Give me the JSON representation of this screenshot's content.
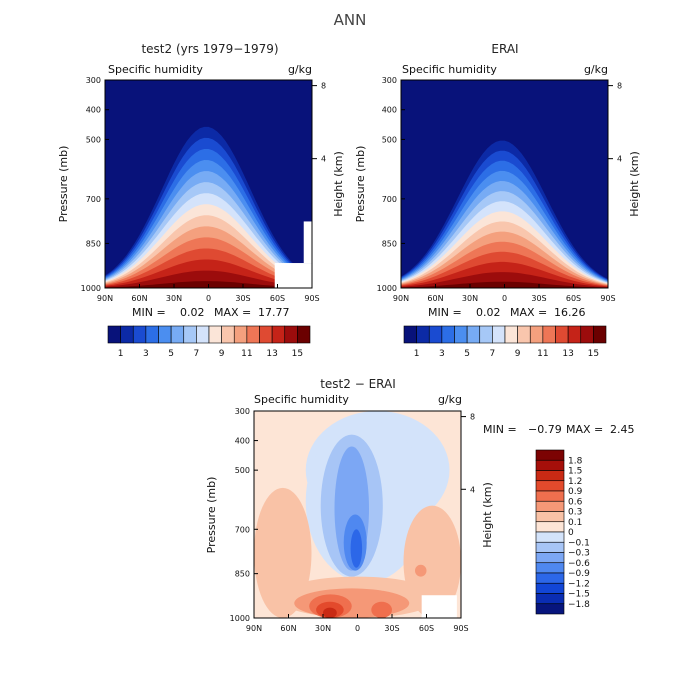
{
  "figure": {
    "title": "ANN"
  },
  "colors": {
    "abs_scale": [
      "#08127a",
      "#0c2aa6",
      "#1a4bd1",
      "#2c6ee6",
      "#4b8ef0",
      "#77abf4",
      "#a6c8f7",
      "#d4e3fb",
      "#fbe5d8",
      "#f9c6ad",
      "#f4a07e",
      "#ee7656",
      "#df4a32",
      "#c52318",
      "#9c0c0c",
      "#6b0000"
    ],
    "diff_scale": [
      "#07157d",
      "#0a2db3",
      "#1246d6",
      "#2c67e8",
      "#4f88f0",
      "#7ca7f4",
      "#a7c5f6",
      "#d3e3fa",
      "#fde5d6",
      "#f9c2a6",
      "#f59877",
      "#ef6f4e",
      "#e34a2c",
      "#c92a14",
      "#a50f0a",
      "#7c0303"
    ]
  },
  "chart_data": [
    {
      "type": "heatmap",
      "title": "test2 (yrs 1979−1979)",
      "subtitle_left": "Specific humidity",
      "subtitle_right": "g/kg",
      "ylabel": "Pressure (mb)",
      "ylabel_right": "Height (km)",
      "x_ticks": [
        "90N",
        "60N",
        "30N",
        "0",
        "30S",
        "60S",
        "90S"
      ],
      "x_tick_values": [
        90,
        60,
        30,
        0,
        -30,
        -60,
        -90
      ],
      "y_ticks": [
        "300",
        "400",
        "500",
        "700",
        "850",
        "1000"
      ],
      "y_tick_values": [
        300,
        400,
        500,
        700,
        850,
        1000
      ],
      "y_right_ticks": [
        "8",
        "4"
      ],
      "y_right_tick_values": [
        8,
        4
      ],
      "xlim": [
        90,
        -90
      ],
      "ylim": [
        1000,
        300
      ],
      "min_label": "MIN =",
      "min_value": "0.02",
      "max_label": "MAX =",
      "max_value": "17.77",
      "colorbar_labels": [
        "1",
        "3",
        "5",
        "7",
        "9",
        "11",
        "13",
        "15"
      ],
      "colorbar_levels": [
        1,
        3,
        5,
        7,
        9,
        11,
        13,
        15
      ],
      "peak_value": 17.77,
      "peak_latitude": 2
    },
    {
      "type": "heatmap",
      "title": "ERAI",
      "subtitle_left": "Specific humidity",
      "subtitle_right": "g/kg",
      "ylabel": "Pressure (mb)",
      "ylabel_right": "Height (km)",
      "x_ticks": [
        "90N",
        "60N",
        "30N",
        "0",
        "30S",
        "60S",
        "90S"
      ],
      "x_tick_values": [
        90,
        60,
        30,
        0,
        -30,
        -60,
        -90
      ],
      "y_ticks": [
        "300",
        "400",
        "500",
        "700",
        "850",
        "1000"
      ],
      "y_tick_values": [
        300,
        400,
        500,
        700,
        850,
        1000
      ],
      "y_right_ticks": [
        "8",
        "4"
      ],
      "y_right_tick_values": [
        8,
        4
      ],
      "xlim": [
        90,
        -90
      ],
      "ylim": [
        1000,
        300
      ],
      "min_label": "MIN =",
      "min_value": "0.02",
      "max_label": "MAX =",
      "max_value": "16.26",
      "colorbar_labels": [
        "1",
        "3",
        "5",
        "7",
        "9",
        "11",
        "13",
        "15"
      ],
      "colorbar_levels": [
        1,
        3,
        5,
        7,
        9,
        11,
        13,
        15
      ],
      "peak_value": 16.26,
      "peak_latitude": 2
    },
    {
      "type": "heatmap",
      "title": "test2 − ERAI",
      "subtitle_left": "Specific humidity",
      "subtitle_right": "g/kg",
      "ylabel": "Pressure (mb)",
      "ylabel_right": "Height (km)",
      "x_ticks": [
        "90N",
        "60N",
        "30N",
        "0",
        "30S",
        "60S",
        "90S"
      ],
      "x_tick_values": [
        90,
        60,
        30,
        0,
        -30,
        -60,
        -90
      ],
      "y_ticks": [
        "300",
        "400",
        "500",
        "700",
        "850",
        "1000"
      ],
      "y_tick_values": [
        300,
        400,
        500,
        700,
        850,
        1000
      ],
      "y_right_ticks": [
        "8",
        "4"
      ],
      "y_right_tick_values": [
        8,
        4
      ],
      "xlim": [
        90,
        -90
      ],
      "ylim": [
        1000,
        300
      ],
      "min_label": "MIN =",
      "min_value": "−0.79",
      "max_label": "MAX =",
      "max_value": "2.45",
      "colorbar_labels": [
        "1.8",
        "1.5",
        "1.2",
        "0.9",
        "0.6",
        "0.3",
        "0.1",
        "0",
        "−0.1",
        "−0.3",
        "−0.6",
        "−0.9",
        "−1.2",
        "−1.5",
        "−1.8"
      ],
      "colorbar_levels": [
        1.8,
        1.5,
        1.2,
        0.9,
        0.6,
        0.3,
        0.1,
        0,
        -0.1,
        -0.3,
        -0.6,
        -0.9,
        -1.2,
        -1.5,
        -1.8
      ]
    }
  ]
}
